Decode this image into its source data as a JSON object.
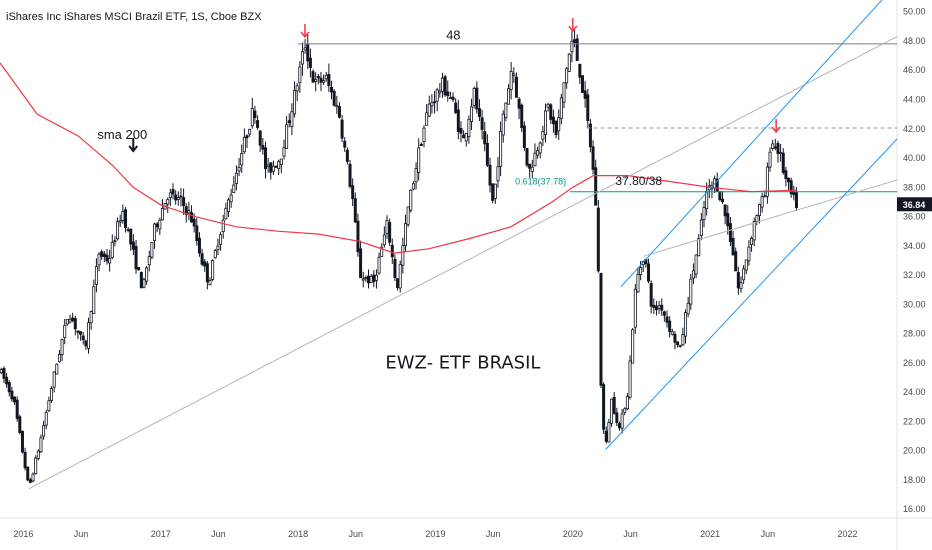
{
  "header": {
    "title": "iShares Inc iShares MSCI Brazil ETF, 1S, Cboe BZX"
  },
  "chart_data": {
    "type": "candlestick",
    "title": "EWZ- ETF BRASIL",
    "y_axis": {
      "ticks": [
        "16.00",
        "18.00",
        "20.00",
        "22.00",
        "24.00",
        "26.00",
        "28.00",
        "30.00",
        "32.00",
        "34.00",
        "36.00",
        "38.00",
        "40.00",
        "42.00",
        "44.00",
        "46.00",
        "48.00",
        "50.00"
      ],
      "ylim": [
        15.4,
        50.8
      ],
      "last_price_label": "36.84"
    },
    "x_axis": {
      "ticks": [
        {
          "label": "2016",
          "t": 2016.0
        },
        {
          "label": "Jun",
          "t": 2016.42
        },
        {
          "label": "2017",
          "t": 2017.0
        },
        {
          "label": "Jun",
          "t": 2017.42
        },
        {
          "label": "2018",
          "t": 2018.0
        },
        {
          "label": "Jun",
          "t": 2018.42
        },
        {
          "label": "2019",
          "t": 2019.0
        },
        {
          "label": "Jun",
          "t": 2019.42
        },
        {
          "label": "2020",
          "t": 2020.0
        },
        {
          "label": "Jun",
          "t": 2020.42
        },
        {
          "label": "2021",
          "t": 2021.0
        },
        {
          "label": "Jun",
          "t": 2021.42
        },
        {
          "label": "2022",
          "t": 2022.0
        }
      ],
      "xlim": [
        2015.83,
        2022.36
      ]
    },
    "price_path": [
      [
        2015.83,
        25.5
      ],
      [
        2015.93,
        23.5
      ],
      [
        2016.04,
        17.4
      ],
      [
        2016.12,
        20.5
      ],
      [
        2016.22,
        25.0
      ],
      [
        2016.33,
        29.5
      ],
      [
        2016.45,
        27.0
      ],
      [
        2016.55,
        33.5
      ],
      [
        2016.62,
        33.0
      ],
      [
        2016.72,
        36.5
      ],
      [
        2016.8,
        33.5
      ],
      [
        2016.87,
        31.0
      ],
      [
        2016.95,
        35.0
      ],
      [
        2017.05,
        37.5
      ],
      [
        2017.15,
        37.0
      ],
      [
        2017.22,
        36.0
      ],
      [
        2017.3,
        33.0
      ],
      [
        2017.35,
        31.5
      ],
      [
        2017.42,
        34.5
      ],
      [
        2017.55,
        39.0
      ],
      [
        2017.68,
        43.5
      ],
      [
        2017.77,
        39.0
      ],
      [
        2017.87,
        40.0
      ],
      [
        2017.98,
        44.5
      ],
      [
        2018.05,
        47.8
      ],
      [
        2018.12,
        45.0
      ],
      [
        2018.2,
        45.5
      ],
      [
        2018.3,
        43.0
      ],
      [
        2018.4,
        37.0
      ],
      [
        2018.45,
        32.0
      ],
      [
        2018.55,
        31.5
      ],
      [
        2018.65,
        35.5
      ],
      [
        2018.72,
        31.0
      ],
      [
        2018.8,
        36.5
      ],
      [
        2018.88,
        40.5
      ],
      [
        2018.95,
        43.5
      ],
      [
        2019.05,
        45.0
      ],
      [
        2019.12,
        44.0
      ],
      [
        2019.2,
        41.0
      ],
      [
        2019.28,
        44.5
      ],
      [
        2019.36,
        40.5
      ],
      [
        2019.42,
        36.8
      ],
      [
        2019.48,
        42.0
      ],
      [
        2019.56,
        46.5
      ],
      [
        2019.62,
        42.5
      ],
      [
        2019.68,
        39.0
      ],
      [
        2019.75,
        41.0
      ],
      [
        2019.82,
        43.5
      ],
      [
        2019.88,
        41.5
      ],
      [
        2019.95,
        46.0
      ],
      [
        2020.0,
        48.2
      ],
      [
        2020.05,
        46.0
      ],
      [
        2020.1,
        43.0
      ],
      [
        2020.14,
        40.0
      ],
      [
        2020.17,
        36.5
      ],
      [
        2020.19,
        31.0
      ],
      [
        2020.21,
        22.5
      ],
      [
        2020.24,
        20.2
      ],
      [
        2020.28,
        23.5
      ],
      [
        2020.34,
        21.5
      ],
      [
        2020.4,
        24.0
      ],
      [
        2020.46,
        31.5
      ],
      [
        2020.52,
        33.5
      ],
      [
        2020.58,
        29.5
      ],
      [
        2020.64,
        30.0
      ],
      [
        2020.7,
        28.5
      ],
      [
        2020.78,
        26.8
      ],
      [
        2020.85,
        31.0
      ],
      [
        2020.92,
        34.5
      ],
      [
        2020.97,
        37.5
      ],
      [
        2021.04,
        38.5
      ],
      [
        2021.1,
        36.5
      ],
      [
        2021.16,
        34.0
      ],
      [
        2021.21,
        30.8
      ],
      [
        2021.27,
        33.5
      ],
      [
        2021.33,
        36.0
      ],
      [
        2021.4,
        37.5
      ],
      [
        2021.44,
        41.2
      ],
      [
        2021.5,
        40.5
      ],
      [
        2021.55,
        38.5
      ],
      [
        2021.6,
        37.2
      ],
      [
        2021.63,
        36.84
      ]
    ],
    "series": [
      {
        "name": "sma 200",
        "color": "#f23645",
        "points": [
          [
            2015.83,
            46.5
          ],
          [
            2016.1,
            43.0
          ],
          [
            2016.4,
            41.5
          ],
          [
            2016.65,
            39.5
          ],
          [
            2016.8,
            38.0
          ],
          [
            2017.0,
            36.8
          ],
          [
            2017.25,
            36.0
          ],
          [
            2017.55,
            35.3
          ],
          [
            2017.85,
            35.0
          ],
          [
            2018.15,
            34.8
          ],
          [
            2018.45,
            34.3
          ],
          [
            2018.7,
            33.5
          ],
          [
            2018.95,
            33.8
          ],
          [
            2019.25,
            34.5
          ],
          [
            2019.55,
            35.3
          ],
          [
            2019.85,
            37.0
          ],
          [
            2020.0,
            38.0
          ],
          [
            2020.15,
            38.8
          ],
          [
            2020.4,
            38.8
          ],
          [
            2020.7,
            38.4
          ],
          [
            2021.0,
            38.0
          ],
          [
            2021.3,
            37.7
          ],
          [
            2021.63,
            37.8
          ]
        ]
      }
    ],
    "annotations": {
      "sma_label": "sma 200",
      "resistance_label": "48",
      "fib_label": "0.618(37.78)",
      "target_label": "37.80/38",
      "horizontal_lines": [
        {
          "name": "resistance-48",
          "y": 47.8,
          "x0": 2018.0,
          "x1": 2022.36,
          "style": "solid",
          "color": "#787b86"
        },
        {
          "name": "dashed-42",
          "y": 42.05,
          "x0": 2020.1,
          "x1": 2022.36,
          "style": "dashed",
          "color": "#9598a1"
        },
        {
          "name": "fib-line",
          "y": 37.7,
          "x0": 2019.98,
          "x1": 2022.36,
          "style": "solid",
          "color": "#089981"
        }
      ],
      "trend_lines": [
        {
          "name": "long-trendline",
          "x0": 2016.04,
          "y0": 17.4,
          "x1": 2022.36,
          "y1": 48.3,
          "color": "#b2b5be"
        },
        {
          "name": "lower-trendline",
          "x0": 2020.52,
          "y0": 33.3,
          "x1": 2022.36,
          "y1": 38.5,
          "color": "#b2b5be"
        },
        {
          "name": "channel-upper",
          "x0": 2020.35,
          "y0": 31.2,
          "x1": 2022.26,
          "y1": 50.9,
          "color": "#2196f3"
        },
        {
          "name": "channel-lower",
          "x0": 2020.24,
          "y0": 20.1,
          "x1": 2022.36,
          "y1": 41.3,
          "color": "#2196f3"
        }
      ],
      "arrows": [
        {
          "name": "peak-arrow-2018",
          "x": 2018.05,
          "y": 47.8,
          "color": "#f23645"
        },
        {
          "name": "peak-arrow-2020",
          "x": 2020.0,
          "y": 48.2,
          "color": "#f23645"
        },
        {
          "name": "peak-arrow-2021",
          "x": 2021.48,
          "y": 41.3,
          "color": "#f23645"
        },
        {
          "name": "sma-arrow",
          "x": 2016.8,
          "y": 40.0,
          "color": "#131722"
        }
      ]
    },
    "colors": {
      "candle": "#131722",
      "axis_text": "#4a4a4a",
      "price_badge_bg": "#131722",
      "price_badge_text": "#ffffff",
      "fib_text": "#089981",
      "text": "#131722"
    }
  }
}
